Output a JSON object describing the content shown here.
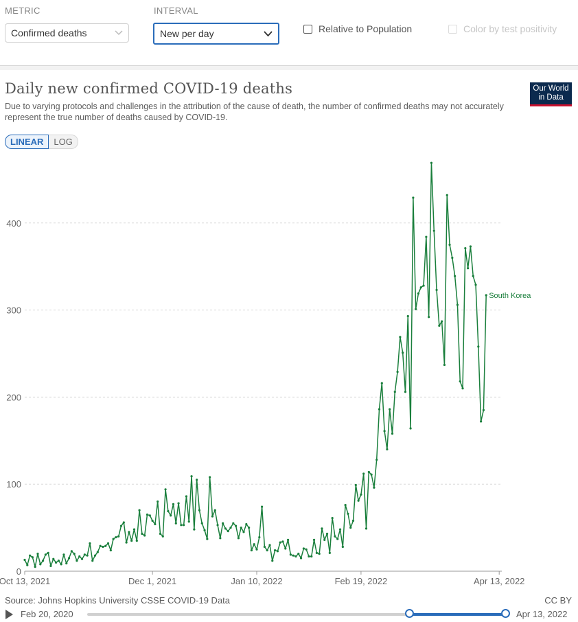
{
  "controls": {
    "metric_label": "METRIC",
    "metric_value": "Confirmed deaths",
    "interval_label": "INTERVAL",
    "interval_value": "New per day",
    "relative_label": "Relative to Population",
    "color_label": "Color by test positivity"
  },
  "header": {
    "title": "Daily new confirmed COVID-19 deaths",
    "subtitle": "Due to varying protocols and challenges in the attribution of the cause of death, the number of confirmed deaths may not accurately represent the true number of deaths caused by COVID-19.",
    "logo_line1": "Our World",
    "logo_line2": "in Data"
  },
  "scale": {
    "linear": "LINEAR",
    "log": "LOG"
  },
  "footer": {
    "source": "Source: Johns Hopkins University CSSE COVID-19 Data",
    "license": "CC BY"
  },
  "timeline": {
    "start": "Feb 20, 2020",
    "end": "Apr 13, 2022",
    "selected_start_fraction": 0.769,
    "selected_end_fraction": 1.0
  },
  "colors": {
    "series": "#1a7f3c",
    "accent": "#2a6cba",
    "grid": "#d8d8d8"
  },
  "chart_data": {
    "type": "line",
    "title": "Daily new confirmed COVID-19 deaths",
    "xlabel": "",
    "ylabel": "",
    "ylim": [
      0,
      470
    ],
    "yticks": [
      0,
      100,
      200,
      300,
      400
    ],
    "xdomain": [
      0,
      183
    ],
    "xtick_labels": [
      {
        "x": 0,
        "label": "Oct 13, 2021"
      },
      {
        "x": 49,
        "label": "Dec 1, 2021"
      },
      {
        "x": 89,
        "label": "Jan 10, 2022"
      },
      {
        "x": 129,
        "label": "Feb 19, 2022"
      },
      {
        "x": 182,
        "label": "Apr 13, 2022"
      }
    ],
    "series": [
      {
        "name": "South Korea",
        "values": [
          13,
          7,
          18,
          16,
          5,
          20,
          8,
          12,
          19,
          21,
          6,
          14,
          10,
          12,
          8,
          19,
          9,
          15,
          23,
          20,
          12,
          17,
          14,
          19,
          18,
          32,
          12,
          18,
          22,
          29,
          28,
          29,
          32,
          24,
          37,
          39,
          40,
          52,
          56,
          33,
          45,
          35,
          48,
          35,
          70,
          43,
          41,
          65,
          64,
          58,
          54,
          80,
          43,
          40,
          94,
          69,
          64,
          77,
          55,
          78,
          53,
          53,
          86,
          57,
          109,
          48,
          105,
          70,
          55,
          47,
          37,
          108,
          63,
          70,
          53,
          38,
          55,
          49,
          46,
          50,
          55,
          52,
          38,
          50,
          45,
          54,
          50,
          24,
          31,
          25,
          39,
          74,
          28,
          24,
          30,
          12,
          24,
          23,
          33,
          34,
          26,
          36,
          19,
          18,
          17,
          20,
          15,
          26,
          25,
          17,
          17,
          36,
          21,
          20,
          49,
          36,
          43,
          21,
          61,
          40,
          37,
          48,
          28,
          76,
          66,
          50,
          58,
          99,
          81,
          88,
          112,
          49,
          114,
          111,
          96,
          128,
          186,
          216,
          161,
          140,
          186,
          158,
          206,
          229,
          269,
          251,
          206,
          293,
          164,
          429,
          301,
          319,
          326,
          328,
          384,
          292,
          469,
          391,
          323,
          282,
          287,
          237,
          432,
          375,
          360,
          339,
          306,
          218,
          210,
          371,
          348,
          373,
          339,
          329,
          258,
          172,
          185,
          317
        ]
      }
    ]
  }
}
